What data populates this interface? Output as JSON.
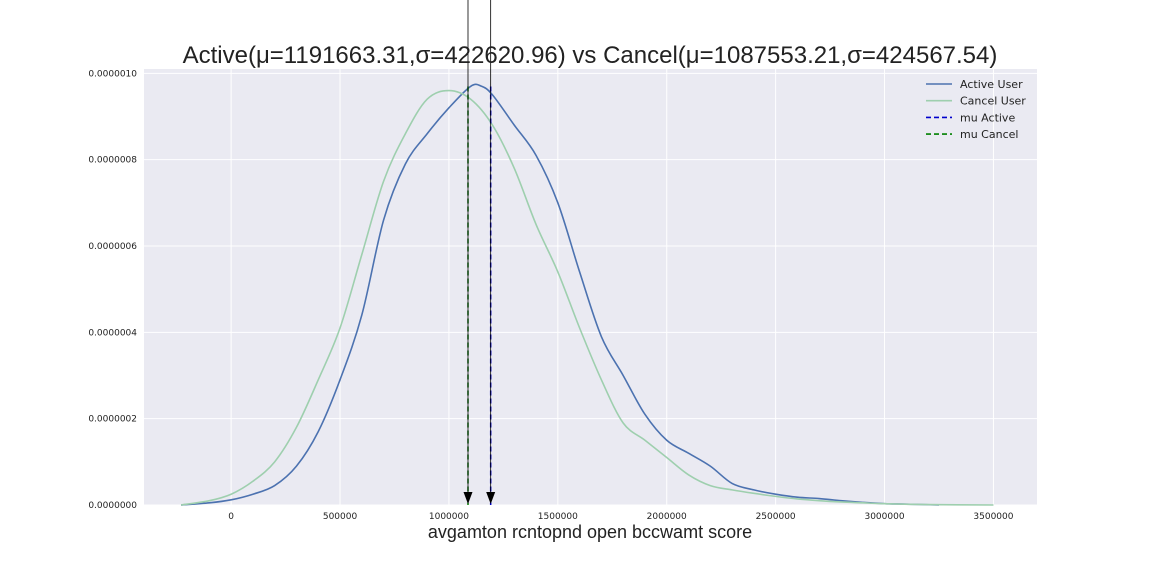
{
  "chart_data": {
    "type": "line",
    "title": "Active(μ=1191663.31,σ=422620.96) vs Cancel(μ=1087553.21,σ=424567.54)",
    "xlabel": "avgamton rcntopnd open bccwamt score",
    "ylabel": "",
    "xlim": [
      -400000,
      3700000
    ],
    "ylim": [
      0,
      1.01e-06
    ],
    "xticks": [
      0,
      500000,
      1000000,
      1500000,
      2000000,
      2500000,
      3000000,
      3500000
    ],
    "xtick_labels": [
      "0",
      "500000",
      "1000000",
      "1500000",
      "2000000",
      "2500000",
      "3000000",
      "3500000"
    ],
    "yticks": [
      0,
      2e-07,
      4e-07,
      6e-07,
      8e-07,
      1e-06
    ],
    "ytick_labels": [
      "0.0000000",
      "0.0000002",
      "0.0000004",
      "0.0000006",
      "0.0000008",
      "0.0000010"
    ],
    "grid": true,
    "legend_position": "top-right",
    "series": [
      {
        "name": "Active User",
        "color": "#4c72b0",
        "style": "solid",
        "x": [
          -230000,
          -100000,
          0,
          100000,
          200000,
          300000,
          400000,
          500000,
          600000,
          700000,
          800000,
          900000,
          1000000,
          1100000,
          1150000,
          1200000,
          1300000,
          1400000,
          1500000,
          1600000,
          1700000,
          1800000,
          1900000,
          2000000,
          2100000,
          2200000,
          2300000,
          2400000,
          2500000,
          2600000,
          2700000,
          2800000,
          2900000,
          3000000,
          3100000,
          3250000
        ],
        "y": [
          0.0,
          5e-09,
          1.2e-08,
          2.5e-08,
          4.5e-08,
          9e-08,
          1.7e-07,
          2.9e-07,
          4.4e-07,
          6.6e-07,
          7.9e-07,
          8.6e-07,
          9.2e-07,
          9.7e-07,
          9.7e-07,
          9.5e-07,
          8.8e-07,
          8.1e-07,
          7e-07,
          5.4e-07,
          3.9e-07,
          3e-07,
          2.1e-07,
          1.5e-07,
          1.2e-07,
          9e-08,
          5e-08,
          3.5e-08,
          2.5e-08,
          1.8e-08,
          1.5e-08,
          1e-08,
          6e-09,
          3e-09,
          2e-09,
          0.0
        ]
      },
      {
        "name": "Cancel User",
        "color": "#9ecfae",
        "style": "solid",
        "x": [
          -230000,
          -100000,
          0,
          100000,
          200000,
          300000,
          400000,
          500000,
          600000,
          700000,
          800000,
          900000,
          1000000,
          1100000,
          1200000,
          1300000,
          1400000,
          1500000,
          1600000,
          1700000,
          1800000,
          1900000,
          2000000,
          2100000,
          2200000,
          2300000,
          2400000,
          2500000,
          2600000,
          2700000,
          2800000,
          2900000,
          3000000,
          3200000,
          3500000
        ],
        "y": [
          0.0,
          1e-08,
          2.5e-08,
          5.5e-08,
          1e-07,
          1.8e-07,
          2.9e-07,
          4.1e-07,
          5.8e-07,
          7.5e-07,
          8.6e-07,
          9.4e-07,
          9.6e-07,
          9.4e-07,
          8.8e-07,
          7.8e-07,
          6.5e-07,
          5.4e-07,
          4.1e-07,
          2.9e-07,
          1.9e-07,
          1.5e-07,
          1.1e-07,
          7e-08,
          4.5e-08,
          3.5e-08,
          2.7e-08,
          2e-08,
          1.4e-08,
          1e-08,
          7e-09,
          5e-09,
          3e-09,
          1e-09,
          0.0
        ]
      }
    ],
    "vlines": [
      {
        "name": "mu Active",
        "x": 1191663.31,
        "color": "#0000cc",
        "style": "dashed"
      },
      {
        "name": "mu Cancel",
        "x": 1087553.21,
        "color": "#008000",
        "style": "dashed"
      }
    ],
    "annotations": [
      {
        "type": "arrow",
        "x": 1087553.21,
        "color": "#000000"
      },
      {
        "type": "arrow",
        "x": 1191663.31,
        "color": "#000000"
      }
    ]
  }
}
